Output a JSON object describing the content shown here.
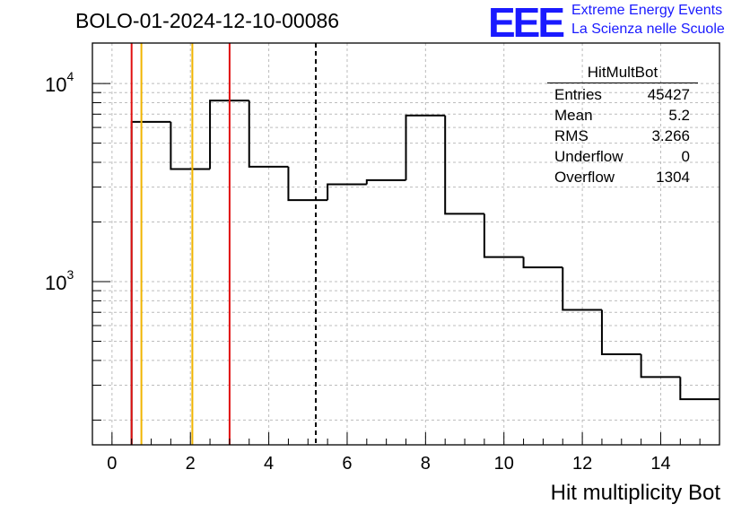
{
  "title": "BOLO-01-2024-12-10-00086",
  "logo": {
    "mark": "EEE",
    "line1": "Extreme Energy Events",
    "line2": "La Scienza nelle Scuole"
  },
  "stats": {
    "name": "HitMultBot",
    "rows": [
      {
        "label": "Entries",
        "value": "45427"
      },
      {
        "label": "Mean",
        "value": "5.2"
      },
      {
        "label": "RMS",
        "value": "3.266"
      },
      {
        "label": "Underflow",
        "value": "0"
      },
      {
        "label": "Overflow",
        "value": "1304"
      }
    ]
  },
  "colors": {
    "red_line": "#e01010",
    "yellow_line": "#f0b400",
    "histogram": "#000000",
    "grid": "#bcbcbc"
  },
  "chart_data": {
    "type": "bar",
    "style": "step-histogram",
    "xlabel": "Hit multiplicity Bot",
    "ylabel": "",
    "xlim": [
      -0.5,
      15.5
    ],
    "ylim": [
      150,
      16000
    ],
    "ylog": true,
    "grid": true,
    "legend": "stats box top-right",
    "x_ticks": [
      0,
      2,
      4,
      6,
      8,
      10,
      12,
      14
    ],
    "x_tick_labels": [
      "0",
      "2",
      "4",
      "6",
      "8",
      "10",
      "12",
      "14"
    ],
    "y_ticks": [
      1000,
      10000
    ],
    "y_tick_labels": [
      {
        "base": "10",
        "exp": "3"
      },
      {
        "base": "10",
        "exp": "4"
      }
    ],
    "bins": [
      {
        "lo": -0.5,
        "hi": 0.5,
        "value": 0
      },
      {
        "lo": 0.5,
        "hi": 1.5,
        "value": 6400
      },
      {
        "lo": 1.5,
        "hi": 2.5,
        "value": 3700
      },
      {
        "lo": 2.5,
        "hi": 3.5,
        "value": 8200
      },
      {
        "lo": 3.5,
        "hi": 4.5,
        "value": 3800
      },
      {
        "lo": 4.5,
        "hi": 5.5,
        "value": 2580
      },
      {
        "lo": 5.5,
        "hi": 6.5,
        "value": 3100
      },
      {
        "lo": 6.5,
        "hi": 7.5,
        "value": 3250
      },
      {
        "lo": 7.5,
        "hi": 8.5,
        "value": 6900
      },
      {
        "lo": 8.5,
        "hi": 9.5,
        "value": 2200
      },
      {
        "lo": 9.5,
        "hi": 10.5,
        "value": 1330
      },
      {
        "lo": 10.5,
        "hi": 11.5,
        "value": 1180
      },
      {
        "lo": 11.5,
        "hi": 12.5,
        "value": 720
      },
      {
        "lo": 12.5,
        "hi": 13.5,
        "value": 430
      },
      {
        "lo": 13.5,
        "hi": 14.5,
        "value": 330
      },
      {
        "lo": 14.5,
        "hi": 15.5,
        "value": 255
      }
    ],
    "vertical_lines": [
      {
        "x": 0.5,
        "color": "red",
        "style": "solid"
      },
      {
        "x": 0.75,
        "color": "yellow",
        "style": "solid"
      },
      {
        "x": 2.05,
        "color": "yellow",
        "style": "solid"
      },
      {
        "x": 3.0,
        "color": "red",
        "style": "solid"
      },
      {
        "x": 5.2,
        "color": "black",
        "style": "dashed"
      }
    ]
  }
}
